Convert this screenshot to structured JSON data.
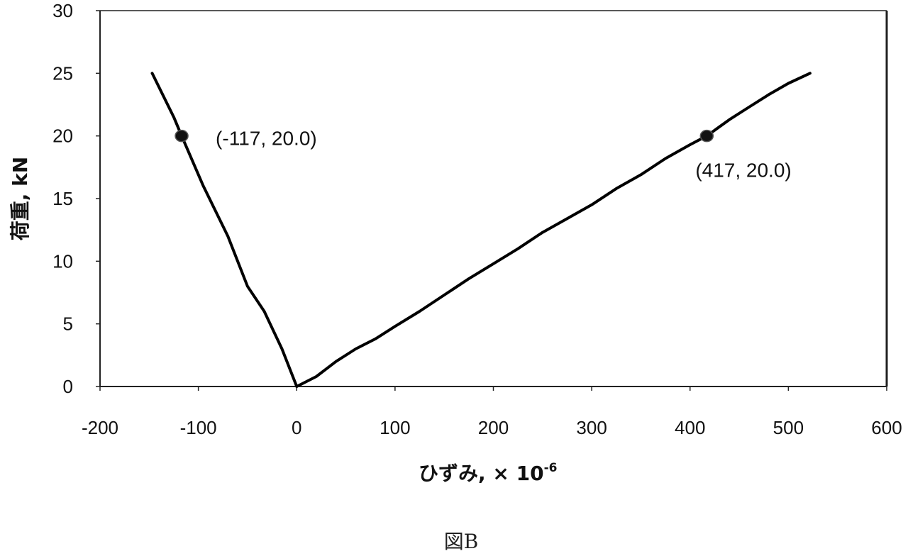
{
  "chart_data": {
    "type": "line",
    "title": "",
    "xlabel": "ひずみ, × 10",
    "xlabel_superscript": "-6",
    "ylabel": "荷重, kN",
    "xlim": [
      -200,
      600
    ],
    "ylim": [
      0,
      30
    ],
    "xticks": [
      -200,
      -100,
      0,
      100,
      200,
      300,
      400,
      500,
      600
    ],
    "yticks": [
      0,
      5,
      10,
      15,
      20,
      25,
      30
    ],
    "grid": false,
    "legend": "none",
    "line_color": "#000000",
    "series": [
      {
        "x": [
          -147,
          -125,
          -117,
          -95,
          -70,
          -50,
          -33,
          -15,
          0
        ],
        "y": [
          25.0,
          21.5,
          20.0,
          16.0,
          12.0,
          8.0,
          6.0,
          3.0,
          0.0
        ]
      },
      {
        "x": [
          0,
          20,
          40,
          60,
          80,
          100,
          125,
          150,
          175,
          200,
          225,
          250,
          275,
          300,
          325,
          350,
          375,
          400,
          417,
          440,
          460,
          480,
          500,
          522
        ],
        "y": [
          0.0,
          0.8,
          2.0,
          3.0,
          3.8,
          4.8,
          6.0,
          7.3,
          8.6,
          9.8,
          11.0,
          12.3,
          13.4,
          14.5,
          15.8,
          16.9,
          18.2,
          19.3,
          20.0,
          21.3,
          22.3,
          23.3,
          24.2,
          25.0
        ]
      }
    ],
    "points": [
      {
        "x": -117,
        "y": 20.0,
        "label": "(-117, 20.0)"
      },
      {
        "x": 417,
        "y": 20.0,
        "label": "(417, 20.0)"
      }
    ]
  },
  "caption": "図B"
}
